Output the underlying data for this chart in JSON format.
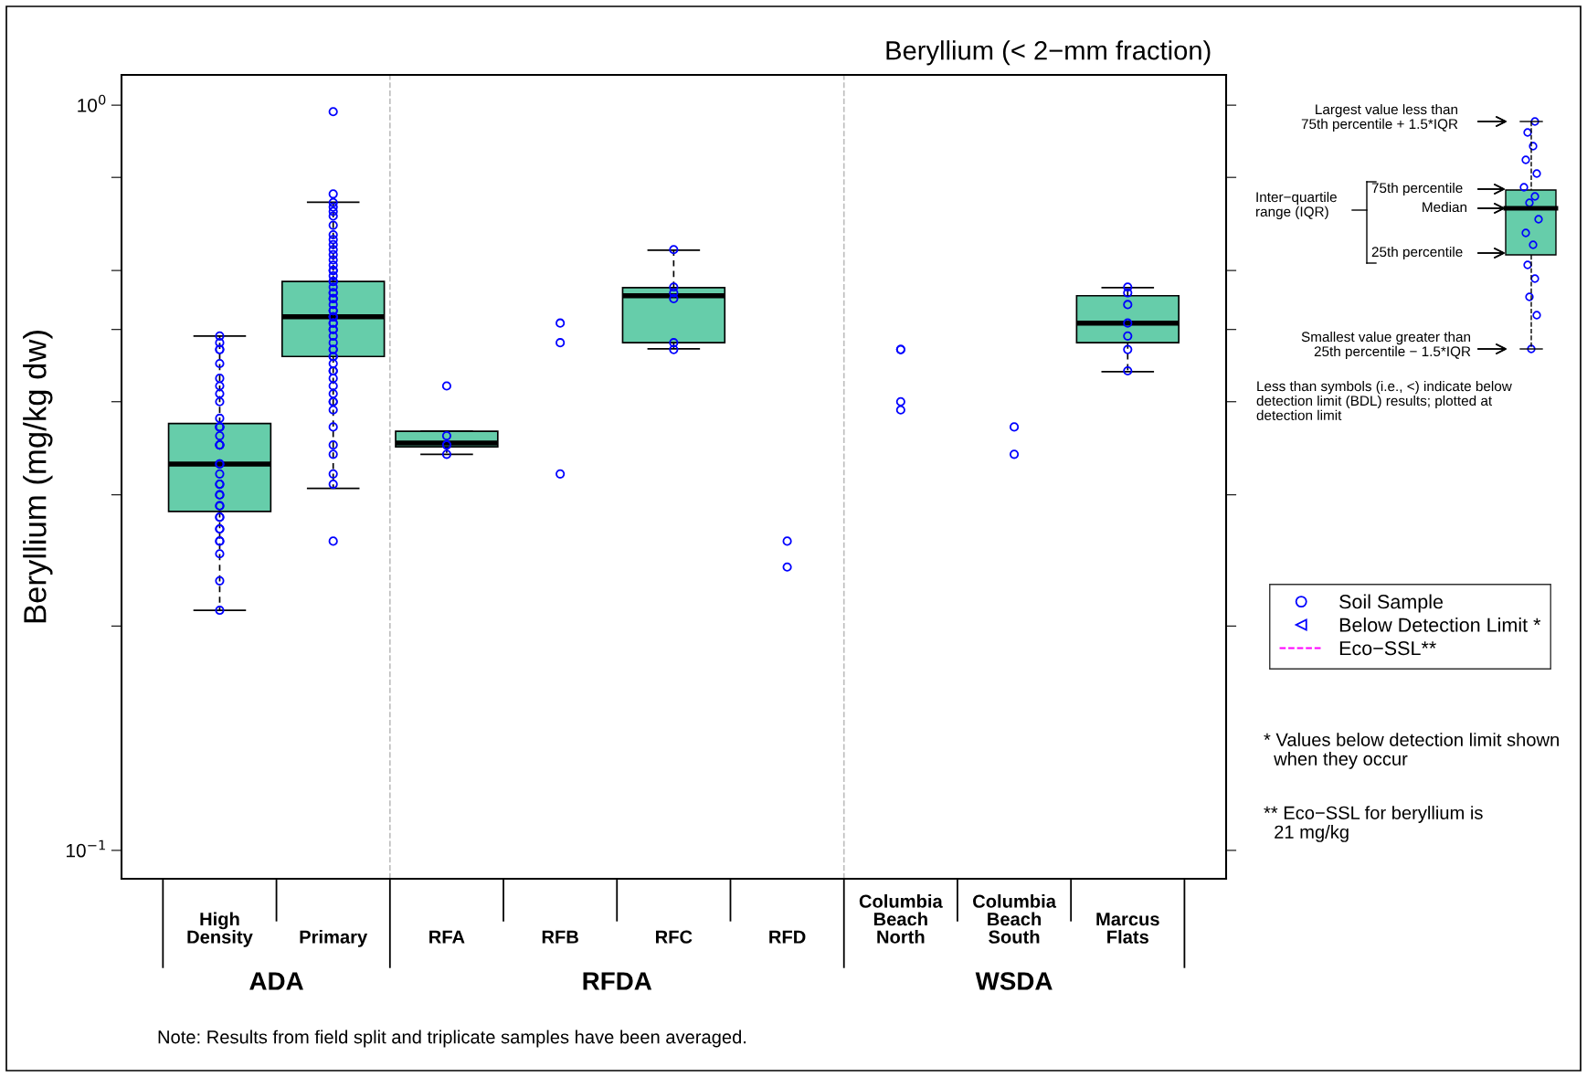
{
  "chart_data": {
    "type": "box",
    "title": "Beryllium (< 2−mm fraction)",
    "ylabel": "Beryllium (mg/kg dw)",
    "categories": [
      "High\nDensity",
      "Primary",
      "RFA",
      "RFB",
      "RFC",
      "RFD",
      "Columbia\nBeach\nNorth",
      "Columbia\nBeach\nSouth",
      "Marcus\nFlats"
    ],
    "color": "#66cdaa",
    "log": "y",
    "ylim": [
      0.0916,
      1.098
    ],
    "yticks": [
      {
        "value": 0.1,
        "label": "10$^{−1}$"
      },
      {
        "value": 0.2,
        "label": null
      },
      {
        "value": 0.3,
        "label": null
      },
      {
        "value": 0.4,
        "label": null
      },
      {
        "value": 0.5,
        "label": null
      },
      {
        "value": 0.6,
        "label": null
      },
      {
        "value": 0.8,
        "label": null
      },
      {
        "value": 1,
        "label": "10$^{0}$"
      }
    ],
    "boxes": [
      {
        "low": 0.21,
        "q1": 0.285,
        "median": 0.33,
        "q3": 0.374,
        "high": 0.49
      },
      {
        "low": 0.306,
        "q1": 0.46,
        "median": 0.52,
        "q3": 0.58,
        "high": 0.741
      },
      {
        "low": 0.34,
        "q1": 0.348,
        "median": 0.352,
        "q3": 0.365,
        "high": 0.365
      },
      null,
      {
        "low": 0.471,
        "q1": 0.48,
        "median": 0.555,
        "q3": 0.569,
        "high": 0.639
      },
      null,
      null,
      null,
      {
        "low": 0.439,
        "q1": 0.48,
        "median": 0.51,
        "q3": 0.555,
        "high": 0.569
      }
    ],
    "series": [
      {
        "name": "Soil Sample",
        "type": "scatter",
        "marker": "circle",
        "color": "#0000ff",
        "x": [
          "High\nDensity",
          "High\nDensity",
          "High\nDensity",
          "High\nDensity",
          "High\nDensity",
          "High\nDensity",
          "High\nDensity",
          "High\nDensity",
          "High\nDensity",
          "High\nDensity",
          "High\nDensity",
          "High\nDensity",
          "High\nDensity",
          "High\nDensity",
          "High\nDensity",
          "High\nDensity",
          "High\nDensity",
          "High\nDensity",
          "High\nDensity",
          "High\nDensity",
          "High\nDensity",
          "High\nDensity",
          "High\nDensity",
          "High\nDensity",
          "High\nDensity",
          "High\nDensity",
          "High\nDensity",
          "High\nDensity",
          "High\nDensity",
          "High\nDensity",
          "High\nDensity",
          "High\nDensity",
          "High\nDensity",
          "High\nDensity",
          "High\nDensity",
          "Primary",
          "Primary",
          "Primary",
          "Primary",
          "Primary",
          "Primary",
          "Primary",
          "Primary",
          "Primary",
          "Primary",
          "Primary",
          "Primary",
          "Primary",
          "Primary",
          "Primary",
          "Primary",
          "Primary",
          "Primary",
          "Primary",
          "Primary",
          "Primary",
          "Primary",
          "Primary",
          "Primary",
          "Primary",
          "Primary",
          "Primary",
          "Primary",
          "Primary",
          "Primary",
          "Primary",
          "Primary",
          "Primary",
          "Primary",
          "Primary",
          "Primary",
          "Primary",
          "Primary",
          "Primary",
          "Primary",
          "Primary",
          "Primary",
          "Primary",
          "Primary",
          "Primary",
          "Primary",
          "Primary",
          "Primary",
          "Primary",
          "Primary",
          "Primary",
          "Primary",
          "Primary",
          "Primary",
          "Primary",
          "RFA",
          "RFA",
          "RFA",
          "RFA",
          "RFA",
          "RFB",
          "RFB",
          "RFB",
          "RFC",
          "RFC",
          "RFC",
          "RFC",
          "RFC",
          "RFC",
          "RFD",
          "RFD",
          "Columbia\nBeach\nNorth",
          "Columbia\nBeach\nNorth",
          "Columbia\nBeach\nNorth",
          "Columbia\nBeach\nNorth",
          "Columbia\nBeach\nSouth",
          "Columbia\nBeach\nSouth",
          "Marcus\nFlats",
          "Marcus\nFlats",
          "Marcus\nFlats",
          "Marcus\nFlats",
          "Marcus\nFlats",
          "Marcus\nFlats",
          "Marcus\nFlats"
        ],
        "values": [
          0.49,
          0.48,
          0.47,
          0.47,
          0.45,
          0.43,
          0.42,
          0.41,
          0.4,
          0.38,
          0.37,
          0.37,
          0.37,
          0.36,
          0.35,
          0.35,
          0.35,
          0.33,
          0.33,
          0.32,
          0.31,
          0.31,
          0.3,
          0.3,
          0.29,
          0.29,
          0.28,
          0.28,
          0.27,
          0.27,
          0.26,
          0.26,
          0.25,
          0.23,
          0.21,
          0.98,
          0.76,
          0.74,
          0.73,
          0.72,
          0.71,
          0.69,
          0.67,
          0.66,
          0.65,
          0.64,
          0.63,
          0.62,
          0.61,
          0.6,
          0.6,
          0.59,
          0.58,
          0.58,
          0.57,
          0.56,
          0.56,
          0.55,
          0.55,
          0.54,
          0.53,
          0.53,
          0.52,
          0.52,
          0.52,
          0.51,
          0.51,
          0.5,
          0.5,
          0.49,
          0.48,
          0.47,
          0.47,
          0.46,
          0.46,
          0.45,
          0.44,
          0.44,
          0.43,
          0.42,
          0.41,
          0.4,
          0.4,
          0.39,
          0.37,
          0.35,
          0.34,
          0.32,
          0.31,
          0.26,
          0.42,
          0.36,
          0.35,
          0.35,
          0.34,
          0.51,
          0.48,
          0.32,
          0.64,
          0.57,
          0.56,
          0.55,
          0.48,
          0.47,
          0.26,
          0.24,
          0.47,
          0.47,
          0.4,
          0.39,
          0.37,
          0.34,
          0.57,
          0.56,
          0.54,
          0.51,
          0.49,
          0.47,
          0.44
        ]
      },
      {
        "name": "Below Detection Limit *",
        "type": "scatter",
        "marker": "triangle",
        "color": "#0000ff",
        "values": [
          null,
          null,
          null,
          null,
          null,
          null,
          null,
          null,
          null
        ]
      },
      {
        "name": "Eco−SSL**",
        "type": "line",
        "marker": "none",
        "line_style": "dashed",
        "color": "#ff00ff",
        "values": [
          null,
          null,
          null,
          null,
          null,
          null,
          null,
          null,
          null
        ]
      }
    ],
    "legend": "right",
    "grid": false,
    "annotations": [
      "ADA",
      "RFDA",
      "WSDA",
      "Largest value less than\n75th percentile + 1.5*IQR",
      "Inter−quartile\nrange (IQR)",
      "75th percentile",
      "Median",
      "25th percentile",
      "Smallest value greater than\n25th percentile − 1.5*IQR",
      "Less than symbols (i.e., <) indicate below\ndetection limit (BDL) results; plotted at\ndetection limit",
      "* Values below detection limit shown\n  when they occur",
      "** Eco−SSL for beryllium is\n  21 mg/kg",
      "Note: Results from field split and triplicate samples have been averaged."
    ]
  }
}
